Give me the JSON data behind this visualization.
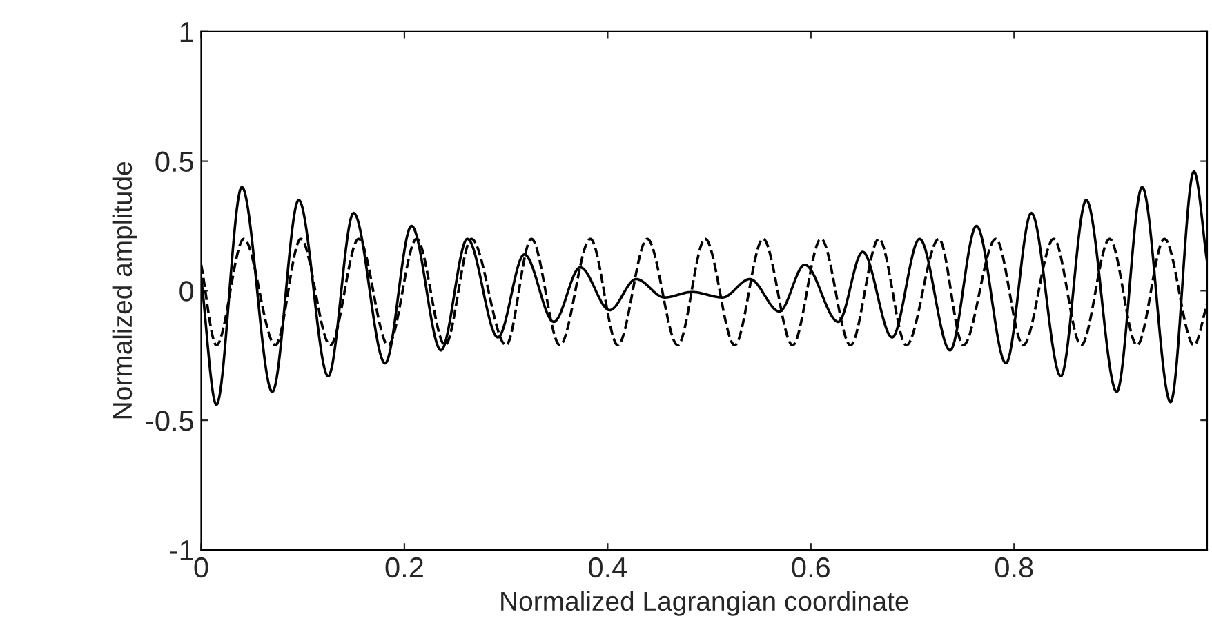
{
  "chart_data": {
    "type": "line",
    "xlabel": "Normalized Lagrangian coordinate",
    "ylabel": "Normalized amplitude",
    "xlim": [
      0,
      0.99
    ],
    "ylim": [
      -1,
      1
    ],
    "xticks": [
      0,
      0.2,
      0.4,
      0.6,
      0.8
    ],
    "yticks": [
      -1,
      -0.5,
      0,
      0.5,
      1
    ],
    "grid": false,
    "legend": false,
    "series": [
      {
        "color": "#000000",
        "line_style": "solid",
        "x": [
          0,
          0.015,
          0.04,
          0.07,
          0.096,
          0.125,
          0.15,
          0.181,
          0.207,
          0.236,
          0.262,
          0.292,
          0.318,
          0.347,
          0.373,
          0.402,
          0.428,
          0.456,
          0.483,
          0.513,
          0.54,
          0.569,
          0.594,
          0.627,
          0.651,
          0.68,
          0.707,
          0.737,
          0.763,
          0.792,
          0.817,
          0.846,
          0.871,
          0.901,
          0.926,
          0.954,
          0.977,
          0.99
        ],
        "values": [
          0.05,
          -0.44,
          0.4,
          -0.39,
          0.35,
          -0.33,
          0.3,
          -0.28,
          0.25,
          -0.23,
          0.2,
          -0.18,
          0.14,
          -0.12,
          0.09,
          -0.075,
          0.045,
          -0.026,
          -0.005,
          -0.026,
          0.045,
          -0.08,
          0.1,
          -0.12,
          0.15,
          -0.18,
          0.2,
          -0.23,
          0.25,
          -0.28,
          0.3,
          -0.33,
          0.35,
          -0.39,
          0.4,
          -0.43,
          0.46,
          0.11
        ]
      },
      {
        "color": "#000000",
        "line_style": "dashed",
        "x": [
          0,
          0.015,
          0.042,
          0.073,
          0.098,
          0.127,
          0.155,
          0.184,
          0.212,
          0.24,
          0.266,
          0.3,
          0.325,
          0.353,
          0.383,
          0.41,
          0.439,
          0.469,
          0.496,
          0.525,
          0.553,
          0.582,
          0.61,
          0.639,
          0.667,
          0.694,
          0.726,
          0.75,
          0.782,
          0.809,
          0.839,
          0.866,
          0.894,
          0.921,
          0.948,
          0.977,
          0.99
        ],
        "values": [
          0.1,
          -0.21,
          0.2,
          -0.21,
          0.2,
          -0.21,
          0.2,
          -0.21,
          0.2,
          -0.21,
          0.2,
          -0.21,
          0.2,
          -0.21,
          0.2,
          -0.21,
          0.2,
          -0.21,
          0.2,
          -0.21,
          0.2,
          -0.21,
          0.2,
          -0.21,
          0.2,
          -0.21,
          0.2,
          -0.21,
          0.2,
          -0.21,
          0.2,
          -0.21,
          0.2,
          -0.21,
          0.2,
          -0.21,
          -0.05
        ]
      }
    ]
  }
}
